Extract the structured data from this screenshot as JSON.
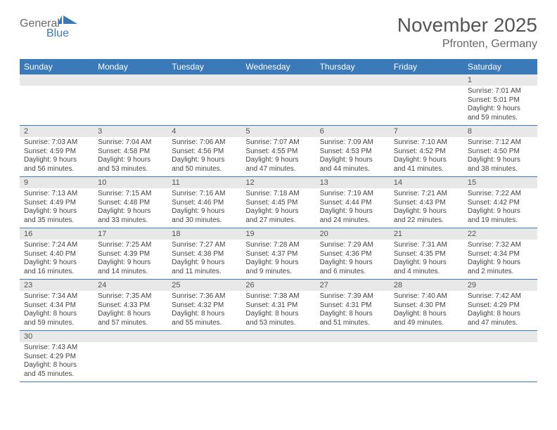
{
  "logo": {
    "text_general": "General",
    "text_blue": "Blue",
    "color_general": "#6a6a6a",
    "color_blue": "#3a7ab8",
    "sail_color": "#3a7ab8"
  },
  "header": {
    "month_title": "November 2025",
    "location": "Pfronten, Germany"
  },
  "style": {
    "header_bg": "#3a7ab8",
    "header_text": "#ffffff",
    "daynum_bg": "#e8e8e8",
    "row_border": "#3a7ab8",
    "body_text": "#444444",
    "page_bg": "#ffffff",
    "title_color": "#555555",
    "location_color": "#666666",
    "body_font_size": 10,
    "header_font_size": 12,
    "title_font_size": 28
  },
  "day_headers": [
    "Sunday",
    "Monday",
    "Tuesday",
    "Wednesday",
    "Thursday",
    "Friday",
    "Saturday"
  ],
  "weeks": [
    [
      {
        "blank": true
      },
      {
        "blank": true
      },
      {
        "blank": true
      },
      {
        "blank": true
      },
      {
        "blank": true
      },
      {
        "blank": true
      },
      {
        "num": "1",
        "sunrise": "Sunrise: 7:01 AM",
        "sunset": "Sunset: 5:01 PM",
        "daylight": "Daylight: 9 hours and 59 minutes."
      }
    ],
    [
      {
        "num": "2",
        "sunrise": "Sunrise: 7:03 AM",
        "sunset": "Sunset: 4:59 PM",
        "daylight": "Daylight: 9 hours and 56 minutes."
      },
      {
        "num": "3",
        "sunrise": "Sunrise: 7:04 AM",
        "sunset": "Sunset: 4:58 PM",
        "daylight": "Daylight: 9 hours and 53 minutes."
      },
      {
        "num": "4",
        "sunrise": "Sunrise: 7:06 AM",
        "sunset": "Sunset: 4:56 PM",
        "daylight": "Daylight: 9 hours and 50 minutes."
      },
      {
        "num": "5",
        "sunrise": "Sunrise: 7:07 AM",
        "sunset": "Sunset: 4:55 PM",
        "daylight": "Daylight: 9 hours and 47 minutes."
      },
      {
        "num": "6",
        "sunrise": "Sunrise: 7:09 AM",
        "sunset": "Sunset: 4:53 PM",
        "daylight": "Daylight: 9 hours and 44 minutes."
      },
      {
        "num": "7",
        "sunrise": "Sunrise: 7:10 AM",
        "sunset": "Sunset: 4:52 PM",
        "daylight": "Daylight: 9 hours and 41 minutes."
      },
      {
        "num": "8",
        "sunrise": "Sunrise: 7:12 AM",
        "sunset": "Sunset: 4:50 PM",
        "daylight": "Daylight: 9 hours and 38 minutes."
      }
    ],
    [
      {
        "num": "9",
        "sunrise": "Sunrise: 7:13 AM",
        "sunset": "Sunset: 4:49 PM",
        "daylight": "Daylight: 9 hours and 35 minutes."
      },
      {
        "num": "10",
        "sunrise": "Sunrise: 7:15 AM",
        "sunset": "Sunset: 4:48 PM",
        "daylight": "Daylight: 9 hours and 33 minutes."
      },
      {
        "num": "11",
        "sunrise": "Sunrise: 7:16 AM",
        "sunset": "Sunset: 4:46 PM",
        "daylight": "Daylight: 9 hours and 30 minutes."
      },
      {
        "num": "12",
        "sunrise": "Sunrise: 7:18 AM",
        "sunset": "Sunset: 4:45 PM",
        "daylight": "Daylight: 9 hours and 27 minutes."
      },
      {
        "num": "13",
        "sunrise": "Sunrise: 7:19 AM",
        "sunset": "Sunset: 4:44 PM",
        "daylight": "Daylight: 9 hours and 24 minutes."
      },
      {
        "num": "14",
        "sunrise": "Sunrise: 7:21 AM",
        "sunset": "Sunset: 4:43 PM",
        "daylight": "Daylight: 9 hours and 22 minutes."
      },
      {
        "num": "15",
        "sunrise": "Sunrise: 7:22 AM",
        "sunset": "Sunset: 4:42 PM",
        "daylight": "Daylight: 9 hours and 19 minutes."
      }
    ],
    [
      {
        "num": "16",
        "sunrise": "Sunrise: 7:24 AM",
        "sunset": "Sunset: 4:40 PM",
        "daylight": "Daylight: 9 hours and 16 minutes."
      },
      {
        "num": "17",
        "sunrise": "Sunrise: 7:25 AM",
        "sunset": "Sunset: 4:39 PM",
        "daylight": "Daylight: 9 hours and 14 minutes."
      },
      {
        "num": "18",
        "sunrise": "Sunrise: 7:27 AM",
        "sunset": "Sunset: 4:38 PM",
        "daylight": "Daylight: 9 hours and 11 minutes."
      },
      {
        "num": "19",
        "sunrise": "Sunrise: 7:28 AM",
        "sunset": "Sunset: 4:37 PM",
        "daylight": "Daylight: 9 hours and 9 minutes."
      },
      {
        "num": "20",
        "sunrise": "Sunrise: 7:29 AM",
        "sunset": "Sunset: 4:36 PM",
        "daylight": "Daylight: 9 hours and 6 minutes."
      },
      {
        "num": "21",
        "sunrise": "Sunrise: 7:31 AM",
        "sunset": "Sunset: 4:35 PM",
        "daylight": "Daylight: 9 hours and 4 minutes."
      },
      {
        "num": "22",
        "sunrise": "Sunrise: 7:32 AM",
        "sunset": "Sunset: 4:34 PM",
        "daylight": "Daylight: 9 hours and 2 minutes."
      }
    ],
    [
      {
        "num": "23",
        "sunrise": "Sunrise: 7:34 AM",
        "sunset": "Sunset: 4:34 PM",
        "daylight": "Daylight: 8 hours and 59 minutes."
      },
      {
        "num": "24",
        "sunrise": "Sunrise: 7:35 AM",
        "sunset": "Sunset: 4:33 PM",
        "daylight": "Daylight: 8 hours and 57 minutes."
      },
      {
        "num": "25",
        "sunrise": "Sunrise: 7:36 AM",
        "sunset": "Sunset: 4:32 PM",
        "daylight": "Daylight: 8 hours and 55 minutes."
      },
      {
        "num": "26",
        "sunrise": "Sunrise: 7:38 AM",
        "sunset": "Sunset: 4:31 PM",
        "daylight": "Daylight: 8 hours and 53 minutes."
      },
      {
        "num": "27",
        "sunrise": "Sunrise: 7:39 AM",
        "sunset": "Sunset: 4:31 PM",
        "daylight": "Daylight: 8 hours and 51 minutes."
      },
      {
        "num": "28",
        "sunrise": "Sunrise: 7:40 AM",
        "sunset": "Sunset: 4:30 PM",
        "daylight": "Daylight: 8 hours and 49 minutes."
      },
      {
        "num": "29",
        "sunrise": "Sunrise: 7:42 AM",
        "sunset": "Sunset: 4:29 PM",
        "daylight": "Daylight: 8 hours and 47 minutes."
      }
    ],
    [
      {
        "num": "30",
        "sunrise": "Sunrise: 7:43 AM",
        "sunset": "Sunset: 4:29 PM",
        "daylight": "Daylight: 8 hours and 45 minutes."
      },
      {
        "blank": true
      },
      {
        "blank": true
      },
      {
        "blank": true
      },
      {
        "blank": true
      },
      {
        "blank": true
      },
      {
        "blank": true
      }
    ]
  ]
}
